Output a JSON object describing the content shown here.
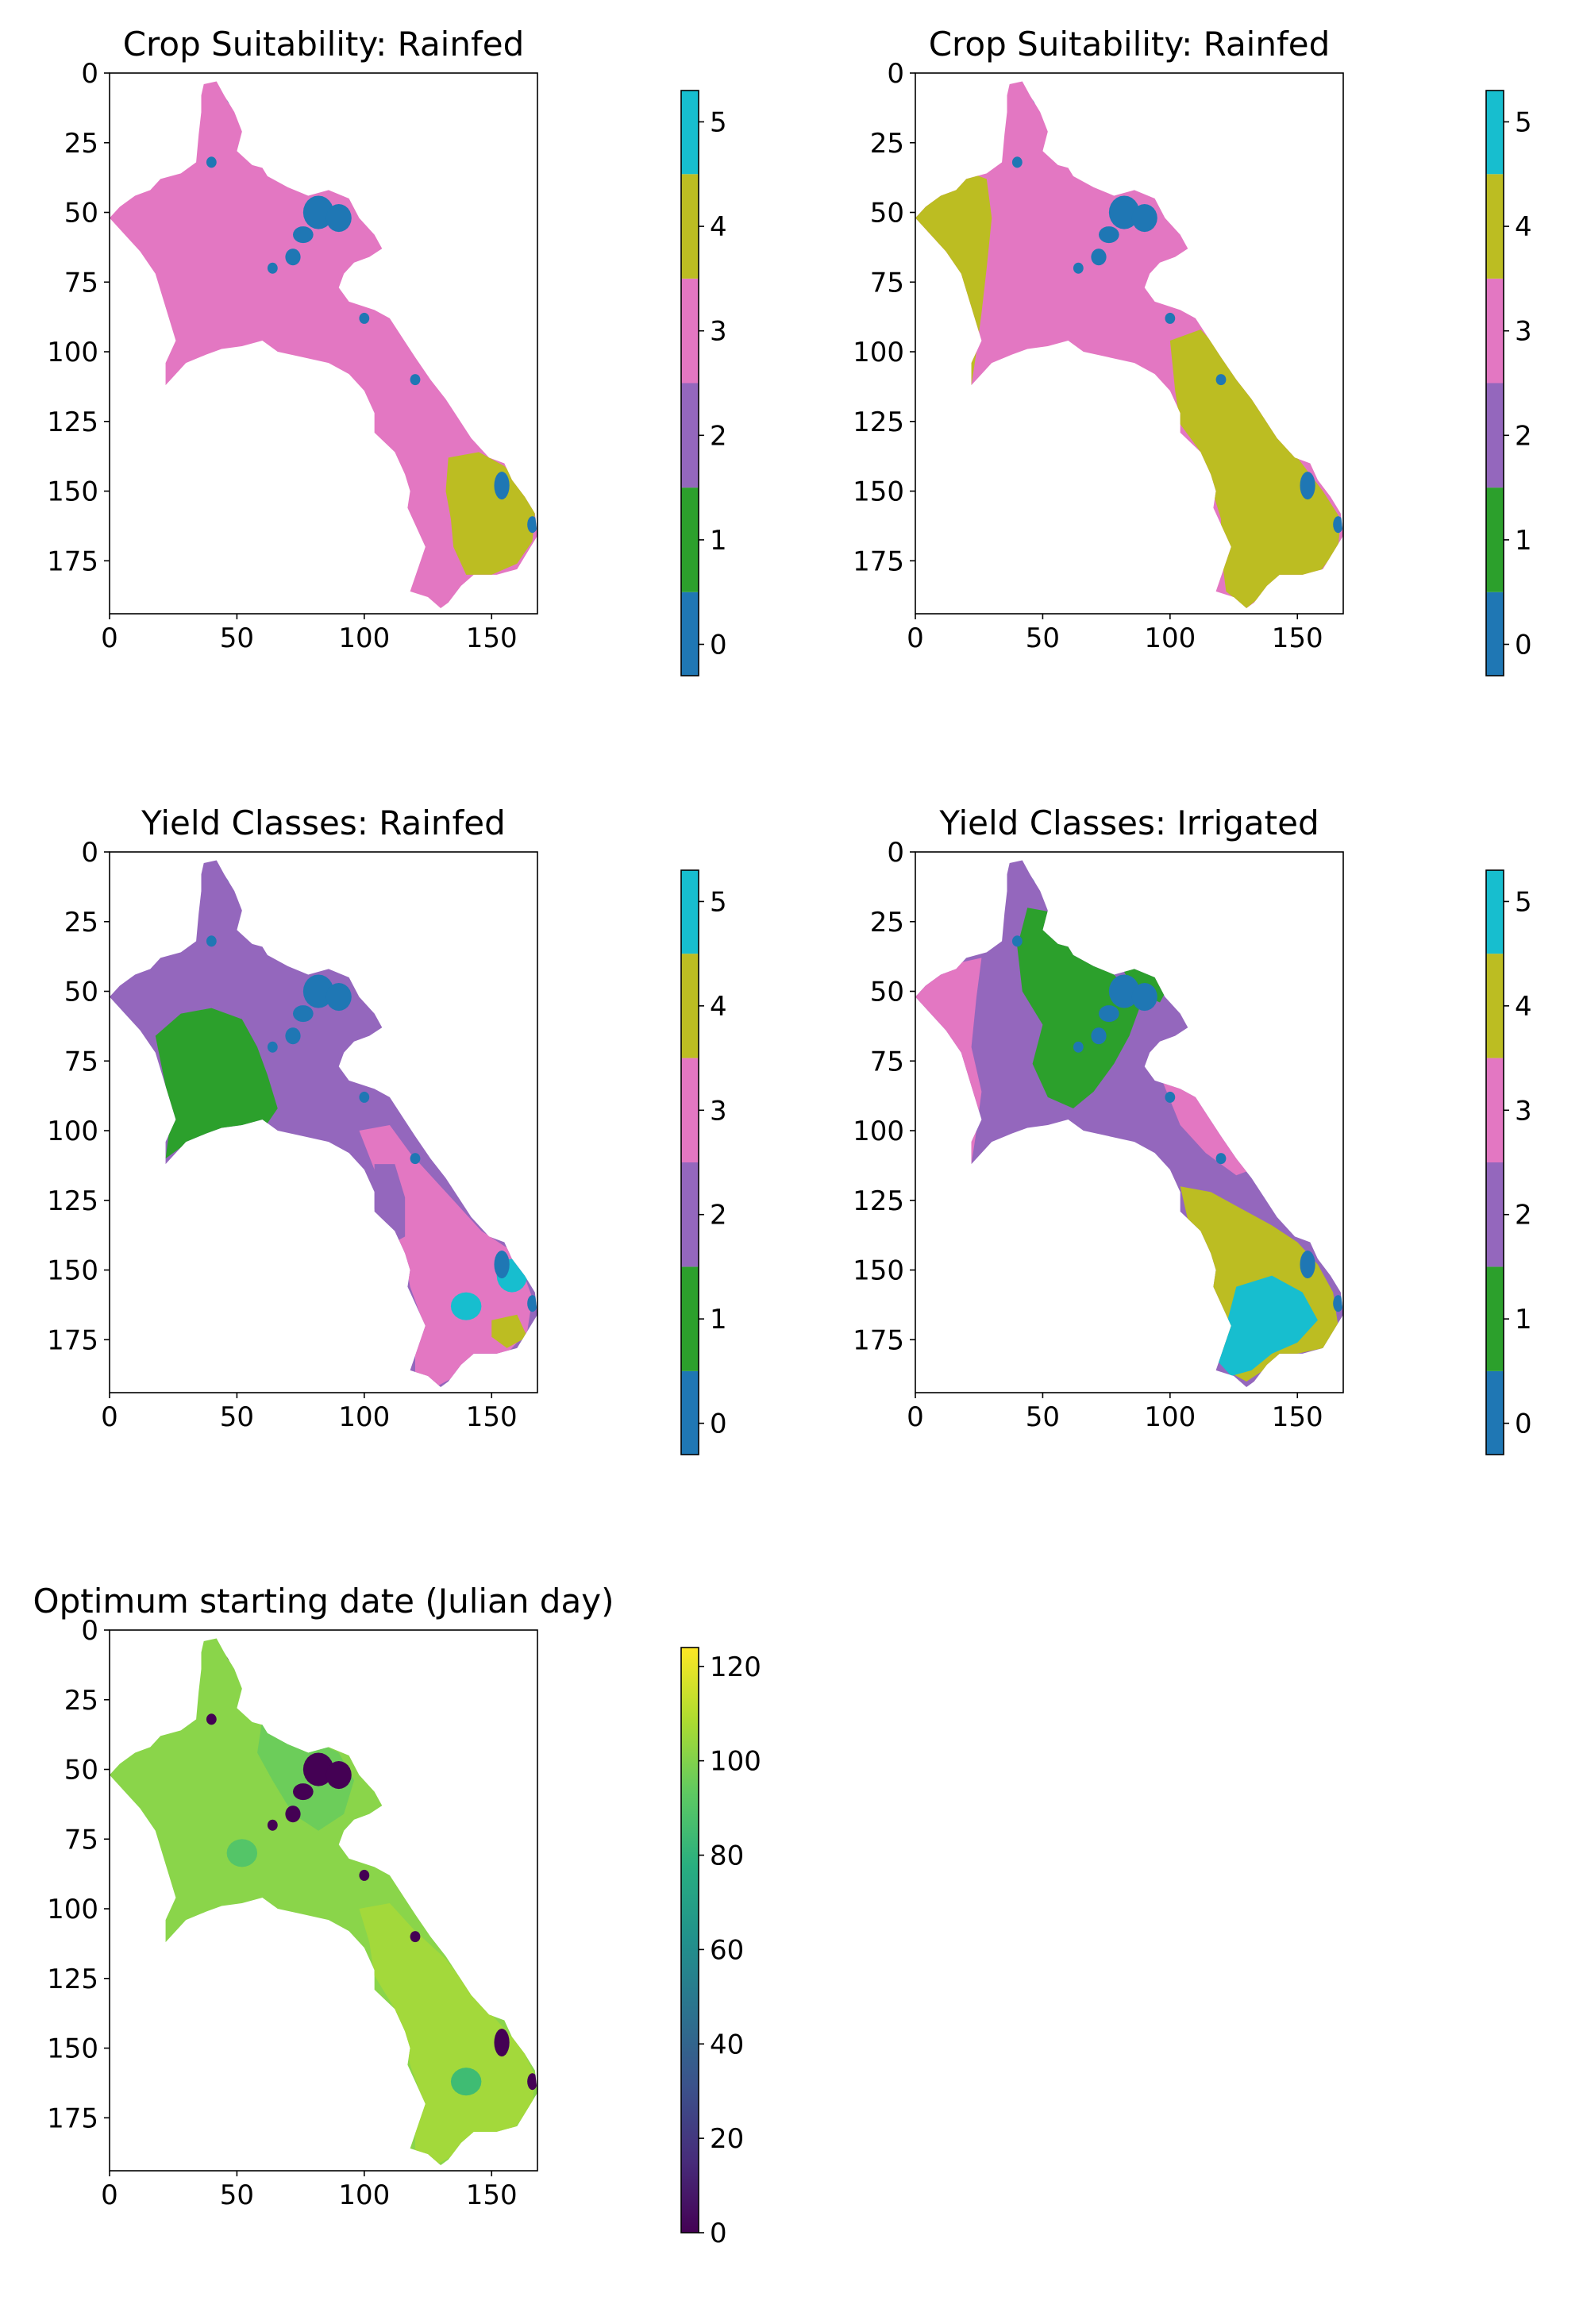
{
  "chart_data": [
    {
      "type": "heatmap",
      "title": "Crop Suitability: Rainfed",
      "xlabel": "",
      "ylabel": "",
      "xlim": [
        0,
        168
      ],
      "ylim": [
        194,
        0
      ],
      "x_ticks": [
        0,
        50,
        100,
        150
      ],
      "y_ticks": [
        0,
        25,
        50,
        75,
        100,
        125,
        150,
        175
      ],
      "colorbar": {
        "kind": "discrete",
        "range": [
          -0.3,
          5.3
        ],
        "ticks": [
          0,
          1,
          2,
          3,
          4,
          5
        ]
      },
      "classes": [
        0,
        1,
        2,
        3,
        4,
        5
      ],
      "class_colors": [
        "#1f77b4",
        "#2ca02c",
        "#9467bd",
        "#e377c2",
        "#bcbd22",
        "#17becf"
      ],
      "dominant_class": 3,
      "regions": [
        {
          "class": 4,
          "area": "south-east (rows ~140-185)"
        },
        {
          "class": 0,
          "area": "north-east scattered patches and far south-east edge"
        }
      ]
    },
    {
      "type": "heatmap",
      "title": "Crop Suitability: Rainfed",
      "xlabel": "",
      "ylabel": "",
      "xlim": [
        0,
        168
      ],
      "ylim": [
        194,
        0
      ],
      "x_ticks": [
        0,
        50,
        100,
        150
      ],
      "y_ticks": [
        0,
        25,
        50,
        75,
        100,
        125,
        150,
        175
      ],
      "colorbar": {
        "kind": "discrete",
        "range": [
          -0.3,
          5.3
        ],
        "ticks": [
          0,
          1,
          2,
          3,
          4,
          5
        ]
      },
      "classes": [
        0,
        1,
        2,
        3,
        4,
        5
      ],
      "class_colors": [
        "#1f77b4",
        "#2ca02c",
        "#9467bd",
        "#e377c2",
        "#bcbd22",
        "#17becf"
      ],
      "dominant_class": 3,
      "regions": [
        {
          "class": 4,
          "area": "west edge and the entire south (rows ~100-190)"
        },
        {
          "class": 0,
          "area": "north-east scattered patches and far south-east edge"
        }
      ]
    },
    {
      "type": "heatmap",
      "title": "Yield Classes: Rainfed",
      "xlabel": "",
      "ylabel": "",
      "xlim": [
        0,
        168
      ],
      "ylim": [
        194,
        0
      ],
      "x_ticks": [
        0,
        50,
        100,
        150
      ],
      "y_ticks": [
        0,
        25,
        50,
        75,
        100,
        125,
        150,
        175
      ],
      "colorbar": {
        "kind": "discrete",
        "range": [
          -0.3,
          5.3
        ],
        "ticks": [
          0,
          1,
          2,
          3,
          4,
          5
        ]
      },
      "classes": [
        0,
        1,
        2,
        3,
        4,
        5
      ],
      "class_colors": [
        "#1f77b4",
        "#2ca02c",
        "#9467bd",
        "#e377c2",
        "#bcbd22",
        "#17becf"
      ],
      "dominant_class": 2,
      "regions": [
        {
          "class": 1,
          "area": "west-central (rows ~50-100)"
        },
        {
          "class": 3,
          "area": "south (rows ~110-190)"
        },
        {
          "class": 5,
          "area": "south-east patches (rows ~145-170)"
        },
        {
          "class": 4,
          "area": "south-east edge"
        },
        {
          "class": 0,
          "area": "north-east scattered patches"
        }
      ]
    },
    {
      "type": "heatmap",
      "title": "Yield Classes: Irrigated",
      "xlabel": "",
      "ylabel": "",
      "xlim": [
        0,
        168
      ],
      "ylim": [
        194,
        0
      ],
      "x_ticks": [
        0,
        50,
        100,
        150
      ],
      "y_ticks": [
        0,
        25,
        50,
        75,
        100,
        125,
        150,
        175
      ],
      "colorbar": {
        "kind": "discrete",
        "range": [
          -0.3,
          5.3
        ],
        "ticks": [
          0,
          1,
          2,
          3,
          4,
          5
        ]
      },
      "classes": [
        0,
        1,
        2,
        3,
        4,
        5
      ],
      "class_colors": [
        "#1f77b4",
        "#2ca02c",
        "#9467bd",
        "#e377c2",
        "#bcbd22",
        "#17becf"
      ],
      "dominant_class": 2,
      "regions": [
        {
          "class": 3,
          "area": "west edge and central-south band"
        },
        {
          "class": 1,
          "area": "north-central (rows ~30-100)"
        },
        {
          "class": 4,
          "area": "south (rows ~125-175)"
        },
        {
          "class": 5,
          "area": "far south (rows ~150-190)"
        },
        {
          "class": 0,
          "area": "north-east scattered patches"
        }
      ]
    },
    {
      "type": "heatmap",
      "title": "Optimum starting date (Julian day)",
      "xlabel": "",
      "ylabel": "",
      "xlim": [
        0,
        168
      ],
      "ylim": [
        194,
        0
      ],
      "x_ticks": [
        0,
        50,
        100,
        150
      ],
      "y_ticks": [
        0,
        25,
        50,
        75,
        100,
        125,
        150,
        175
      ],
      "colorbar": {
        "kind": "continuous",
        "colormap": "viridis",
        "range": [
          0,
          124
        ],
        "ticks": [
          0,
          20,
          40,
          60,
          80,
          100,
          120
        ]
      },
      "dominant_value_range": [
        85,
        110
      ],
      "regions": [
        {
          "value_range": [
            85,
            100
          ],
          "area": "north and centre"
        },
        {
          "value_range": [
            100,
            112
          ],
          "area": "south"
        },
        {
          "value_range": [
            0,
            10
          ],
          "area": "north-east scattered patches and south-east edge"
        }
      ]
    }
  ]
}
